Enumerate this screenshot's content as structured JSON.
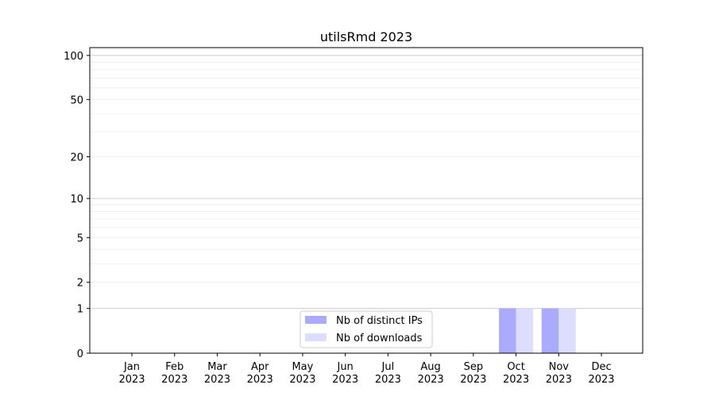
{
  "chart_data": {
    "type": "bar",
    "title": "utilsRmd 2023",
    "xlabel": "",
    "ylabel": "",
    "categories": [
      "Jan\n2023",
      "Feb\n2023",
      "Mar\n2023",
      "Apr\n2023",
      "May\n2023",
      "Jun\n2023",
      "Jul\n2023",
      "Aug\n2023",
      "Sep\n2023",
      "Oct\n2023",
      "Nov\n2023",
      "Dec\n2023"
    ],
    "series": [
      {
        "name": "Nb of distinct IPs",
        "color": "#aaaaff",
        "values": [
          0,
          0,
          0,
          0,
          0,
          0,
          0,
          0,
          0,
          1,
          1,
          0
        ]
      },
      {
        "name": "Nb of downloads",
        "color": "#ddddff",
        "values": [
          0,
          0,
          0,
          0,
          0,
          0,
          0,
          0,
          0,
          1,
          1,
          0
        ]
      }
    ],
    "yscale": "log(1+y)",
    "ylim": [
      0,
      113
    ],
    "yticks": [
      0,
      1,
      2,
      5,
      10,
      20,
      50,
      100
    ],
    "grid": true,
    "legend": "lower-center"
  }
}
